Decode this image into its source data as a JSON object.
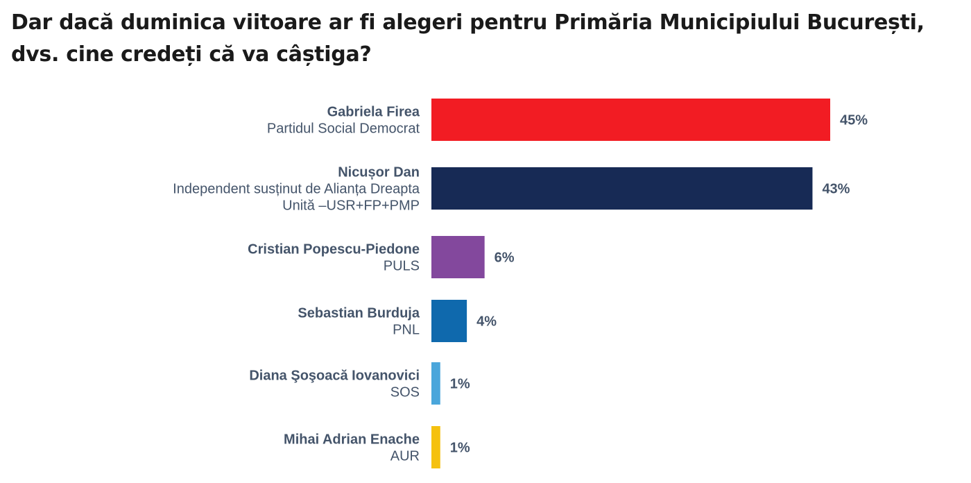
{
  "chart_data": {
    "type": "bar",
    "orientation": "horizontal",
    "title": "Dar dacă duminica viitoare ar fi alegeri pentru Primăria Municipiului București, dvs. cine credeți că va câștiga?",
    "categories": [
      {
        "name": "Gabriela Firea",
        "party": [
          "Partidul Social Democrat"
        ]
      },
      {
        "name": "Nicușor Dan",
        "party": [
          "Independent susținut de Alianța Dreapta",
          "Unită –USR+FP+PMP"
        ]
      },
      {
        "name": "Cristian Popescu-Piedone",
        "party": [
          "PULS"
        ]
      },
      {
        "name": "Sebastian Burduja",
        "party": [
          "PNL"
        ]
      },
      {
        "name": "Diana Şoşoacă Iovanovici",
        "party": [
          "SOS"
        ]
      },
      {
        "name": "Mihai Adrian Enache",
        "party": [
          "AUR"
        ]
      }
    ],
    "values": [
      45,
      43,
      6,
      4,
      1,
      1
    ],
    "value_labels": [
      "45%",
      "43%",
      "6%",
      "4%",
      "1%",
      "1%"
    ],
    "unit": "%",
    "colors": [
      "#f21c23",
      "#172a55",
      "#83489d",
      "#0f69ad",
      "#4aa6db",
      "#f5c10f"
    ],
    "xlim": [
      0,
      45
    ],
    "grid": false,
    "legend": "none"
  }
}
